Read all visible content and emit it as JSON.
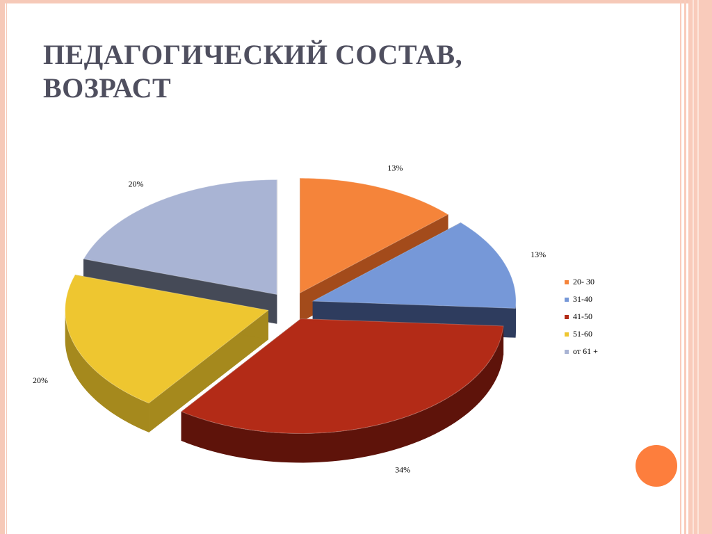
{
  "slide": {
    "title_line1": "ПЕДАГОГИЧЕСКИЙ СОСТАВ,",
    "title_line2": "ВОЗРАСТ"
  },
  "chart_data": {
    "type": "pie",
    "style": "3d-exploded",
    "legend_placement": "right",
    "slices": [
      {
        "category": "20- 30",
        "value": 13,
        "label": "13%",
        "color": "#f5843a",
        "side": "#a34b1b"
      },
      {
        "category": "31-40",
        "value": 13,
        "label": "13%",
        "color": "#7698d8",
        "side": "#2e3c5e"
      },
      {
        "category": "41-50",
        "value": 34,
        "label": "34%",
        "color": "#b32b17",
        "side": "#5e130a"
      },
      {
        "category": "51-60",
        "value": 20,
        "label": "20%",
        "color": "#eec630",
        "side": "#a5891d"
      },
      {
        "category": "от 61 +",
        "value": 20,
        "label": "20%",
        "color": "#a9b4d4",
        "side": "#454a57"
      }
    ]
  },
  "theme": {
    "frame_color": "#f6c9b8",
    "accent_circle": "#fd7e3d",
    "title_color": "#4f4f5f"
  }
}
